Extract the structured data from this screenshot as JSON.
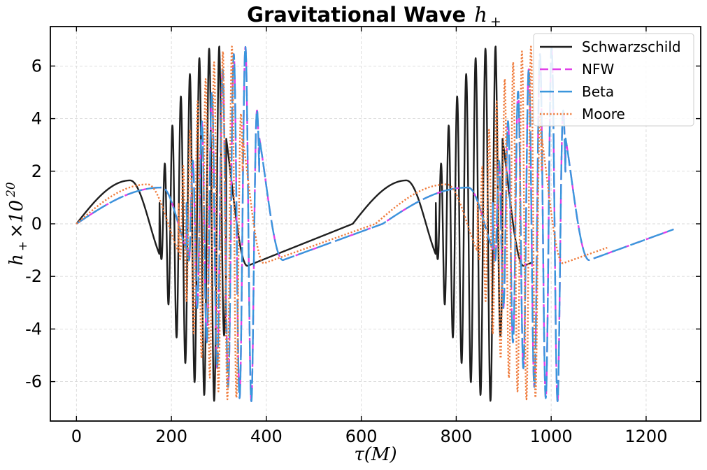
{
  "chart_data": {
    "type": "line",
    "title": "Gravitational Wave",
    "title_math": "h",
    "title_math_sub": "+",
    "xlabel": "τ(M)",
    "ylabel_base": "h",
    "ylabel_sub": "+",
    "ylabel_times": "×10",
    "ylabel_exp": "20",
    "xlim": [
      -55,
      1315
    ],
    "ylim": [
      -7.5,
      7.5
    ],
    "xticks": [
      0,
      200,
      400,
      600,
      800,
      1000,
      1200
    ],
    "xtick_labels": [
      "0",
      "200",
      "400",
      "600",
      "800",
      "1000",
      "1200"
    ],
    "yticks": [
      6,
      4,
      2,
      0,
      -2,
      -4,
      -6
    ],
    "ytick_labels": [
      "6",
      "4",
      "2",
      "0",
      "-2",
      "-4",
      "-6"
    ],
    "grid": true,
    "legend_position": "top-right",
    "series": [
      {
        "name": "Schwarzschild",
        "color": "#1f1f1f",
        "style": "solid",
        "period": 582,
        "x_end": 962,
        "peak_x": 113,
        "peak_y": 1.65,
        "trough_x": 360,
        "trough_y": -1.6,
        "burst_start": 175,
        "burst_end": 315,
        "burst_amp": 6.75,
        "burst_cycles": 7.5
      },
      {
        "name": "NFW",
        "color": "#e040e8",
        "style": "dashed",
        "period": 645,
        "x_end": 1258,
        "peak_x": 180,
        "peak_y": 1.38,
        "trough_x": 435,
        "trough_y": -1.38,
        "burst_start": 232,
        "burst_end": 385,
        "burst_amp": 6.75,
        "burst_cycles": 7.0
      },
      {
        "name": "Beta",
        "color": "#3a96dc",
        "style": "longdash",
        "period": 645,
        "x_end": 1258,
        "peak_x": 180,
        "peak_y": 1.38,
        "trough_x": 435,
        "trough_y": -1.38,
        "burst_start": 232,
        "burst_end": 385,
        "burst_amp": 6.75,
        "burst_cycles": 7.0
      },
      {
        "name": "Moore",
        "color": "#ef7a3a",
        "style": "dotted",
        "period": 630,
        "x_end": 1118,
        "peak_x": 150,
        "peak_y": 1.5,
        "trough_x": 395,
        "trough_y": -1.5,
        "burst_start": 215,
        "burst_end": 350,
        "burst_amp": 6.75,
        "burst_cycles": 8.0
      }
    ]
  }
}
